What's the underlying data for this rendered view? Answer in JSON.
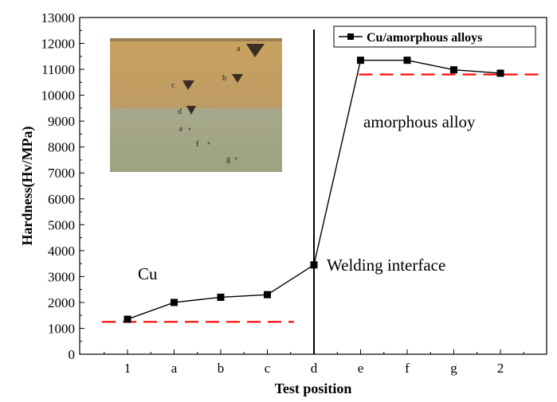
{
  "chart_data": {
    "type": "line",
    "categories": [
      "1",
      "a",
      "b",
      "c",
      "d",
      "e",
      "f",
      "g",
      "2"
    ],
    "series": [
      {
        "name": "Cu/amorphous alloys",
        "values": [
          1350,
          2000,
          2200,
          2300,
          3450,
          11350,
          11350,
          10980,
          10850
        ],
        "color": "#000000",
        "marker": "square"
      }
    ],
    "reference_lines": [
      {
        "label": "Cu",
        "value": 1250,
        "from_category": "1",
        "to_category": "d",
        "color": "#ff0000",
        "style": "dashed"
      },
      {
        "label": "amorphous alloy",
        "value": 10800,
        "from_category": "e",
        "to_category": "2",
        "color": "#ff0000",
        "style": "dashed"
      }
    ],
    "vertical_line": {
      "at_category": "d",
      "color": "#000000"
    },
    "annotations": [
      {
        "text": "Cu"
      },
      {
        "text": "Welding interface"
      },
      {
        "text": "amorphous alloy"
      }
    ],
    "inset_image_labels": [
      "a",
      "b",
      "c",
      "d",
      "e",
      "f",
      "g"
    ],
    "xlabel": "Test position",
    "ylabel": "Hardness(Hv/MPa)",
    "ylim": [
      0,
      13000
    ],
    "yticks": [
      0,
      1000,
      2000,
      3000,
      4000,
      5000,
      6000,
      7000,
      8000,
      9000,
      10000,
      11000,
      12000,
      13000
    ],
    "legend_position": "top-right",
    "grid": false
  }
}
